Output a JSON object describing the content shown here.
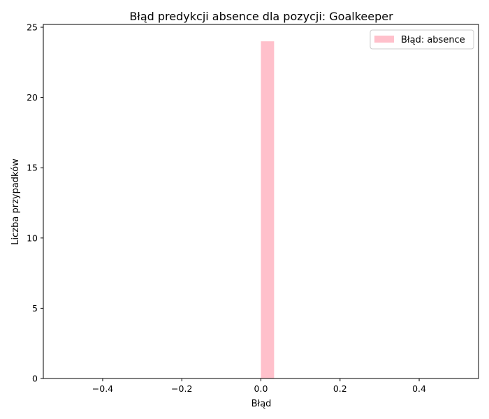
{
  "chart_data": {
    "type": "bar",
    "title": "Błąd predykcji absence dla pozycji: Goalkeeper",
    "xlabel": "Błąd",
    "ylabel": "Liczba przypadków",
    "xlim": [
      -0.55,
      0.55
    ],
    "ylim": [
      0,
      25.2
    ],
    "xticks": [
      -0.4,
      -0.2,
      0.0,
      0.2,
      0.4
    ],
    "xtick_labels": [
      "−0.4",
      "−0.2",
      "0.0",
      "0.2",
      "0.4"
    ],
    "yticks": [
      0,
      5,
      10,
      15,
      20,
      25
    ],
    "ytick_labels": [
      "0",
      "5",
      "10",
      "15",
      "20",
      "25"
    ],
    "bins": [
      {
        "x0": 0.0,
        "x1": 0.0333,
        "value": 24
      }
    ],
    "series": [
      {
        "name": "Błąd: absence",
        "color": "#ffc0cb"
      }
    ],
    "legend_position": "top-right",
    "grid": false
  }
}
